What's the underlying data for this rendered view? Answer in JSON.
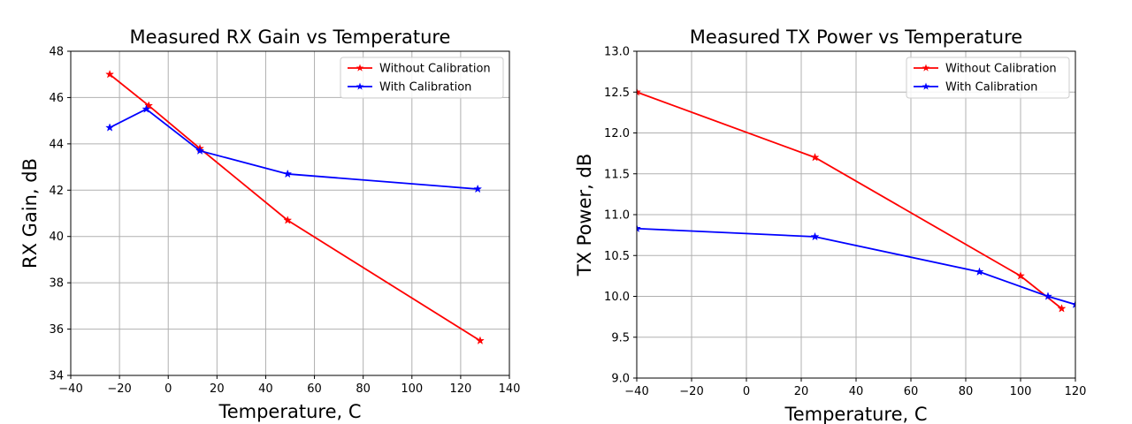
{
  "chart_data": [
    {
      "type": "line",
      "title": "Measured RX Gain vs Temperature",
      "xlabel": "Temperature, C",
      "ylabel": "RX Gain, dB",
      "xlim": [
        -40,
        140
      ],
      "ylim": [
        34,
        48
      ],
      "xticks": [
        -40,
        -20,
        0,
        20,
        40,
        60,
        80,
        100,
        120,
        140
      ],
      "yticks": [
        34,
        36,
        38,
        40,
        42,
        44,
        46,
        48
      ],
      "grid": true,
      "legend_position": "top-right",
      "series": [
        {
          "name": "Without Calibration",
          "color": "#ff0000",
          "marker": "star",
          "x": [
            -24,
            -8,
            13,
            49,
            128
          ],
          "y": [
            47.0,
            45.65,
            43.8,
            40.7,
            35.5
          ]
        },
        {
          "name": "With Calibration",
          "color": "#0000ff",
          "marker": "star",
          "x": [
            -24,
            -9,
            13,
            49,
            127
          ],
          "y": [
            44.7,
            45.5,
            43.7,
            42.7,
            42.05
          ]
        }
      ]
    },
    {
      "type": "line",
      "title": "Measured TX Power vs Temperature",
      "xlabel": "Temperature, C",
      "ylabel": "TX Power, dB",
      "xlim": [
        -40,
        120
      ],
      "ylim": [
        9.0,
        13.0
      ],
      "xticks": [
        -40,
        -20,
        0,
        20,
        40,
        60,
        80,
        100,
        120
      ],
      "yticks": [
        9.0,
        9.5,
        10.0,
        10.5,
        11.0,
        11.5,
        12.0,
        12.5,
        13.0
      ],
      "grid": true,
      "legend_position": "top-right",
      "series": [
        {
          "name": "Without Calibration",
          "color": "#ff0000",
          "marker": "star",
          "x": [
            -40,
            25,
            100,
            115
          ],
          "y": [
            12.5,
            11.7,
            10.25,
            9.85
          ]
        },
        {
          "name": "With Calibration",
          "color": "#0000ff",
          "marker": "star",
          "x": [
            -40,
            25,
            85,
            110,
            120
          ],
          "y": [
            10.83,
            10.73,
            10.3,
            10.0,
            9.9
          ]
        }
      ]
    }
  ]
}
